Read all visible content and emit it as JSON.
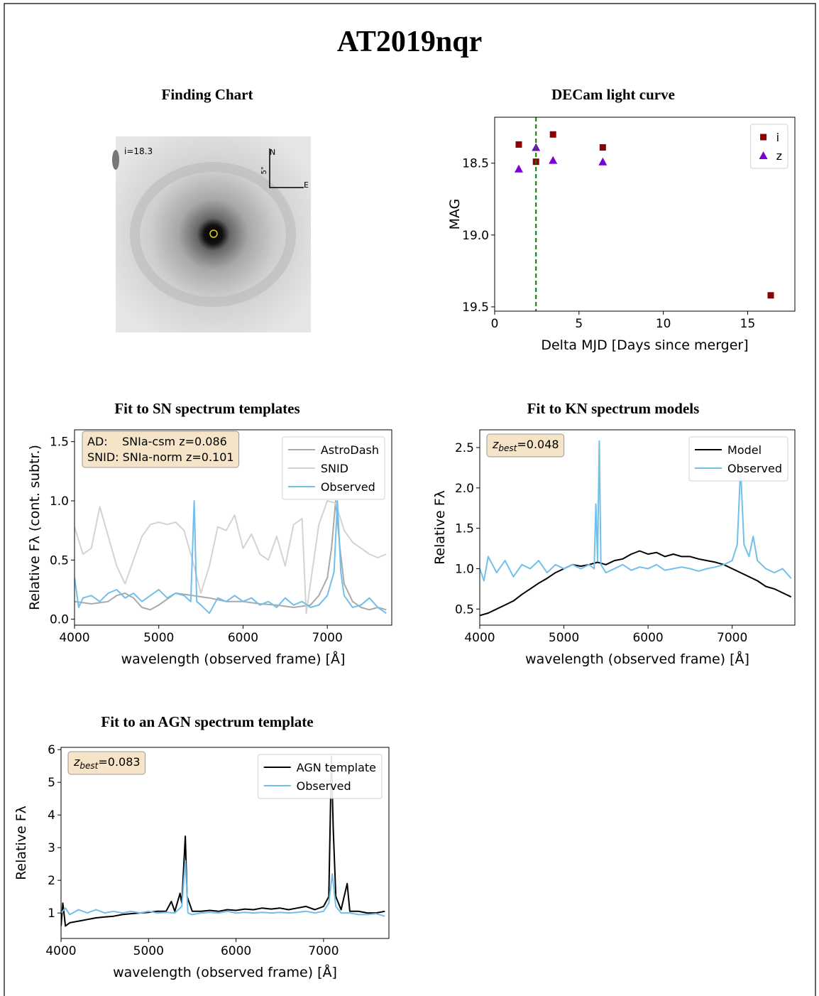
{
  "title": "AT2019nqr",
  "chart_data": [
    {
      "type": "image",
      "title": "Finding Chart",
      "annotations": {
        "magnitude": "i=18.3",
        "north": "N",
        "east": "E",
        "scale": "5\""
      }
    },
    {
      "type": "scatter",
      "title": "DECam light curve",
      "xlabel": "Delta MJD [Days since merger]",
      "ylabel": "MAG",
      "xlim": [
        0,
        17.8
      ],
      "ylim": [
        18.18,
        19.53
      ],
      "invert_y": true,
      "xticks": [
        0,
        5,
        10,
        15
      ],
      "yticks": [
        18.5,
        {
          "value": 19,
          "label": "19.0"
        },
        19.5
      ],
      "vline": 2.45,
      "vline_color": "#008000",
      "legend": "upper right",
      "series": [
        {
          "name": "i",
          "color": "#8b0000",
          "marker": "s",
          "x": [
            1.43,
            2.45,
            3.46,
            6.41,
            16.37
          ],
          "values": [
            18.37,
            18.49,
            18.3,
            18.39,
            19.42
          ]
        },
        {
          "name": "z",
          "color": "#7a00d6",
          "marker": "^",
          "x": [
            1.43,
            2.45,
            3.46,
            6.41
          ],
          "values": [
            18.54,
            18.39,
            18.48,
            18.49
          ]
        }
      ]
    },
    {
      "type": "line",
      "title": "Fit to SN spectrum templates",
      "xlabel": "wavelength (observed frame) [Å]",
      "ylabel": "Relative Fλ (cont. subtr.)",
      "xlim": [
        4000,
        7765
      ],
      "ylim": [
        -0.05,
        1.6
      ],
      "xticks": [
        4000,
        5000,
        6000,
        7000
      ],
      "yticks": [
        {
          "value": 0,
          "label": "0.0"
        },
        0.5,
        {
          "value": 1,
          "label": "1.0"
        },
        1.5
      ],
      "legend": "upper right",
      "annotation": [
        "AD:    SNIa-csm z=0.086",
        "SNID: SNIa-norm z=0.101"
      ],
      "series": [
        {
          "name": "AstroDash",
          "color": "#a9a9a9",
          "x": [
            4000,
            4200,
            4400,
            4500,
            4600,
            4700,
            4800,
            4900,
            5000,
            5200,
            5400,
            5600,
            5800,
            6000,
            6200,
            6400,
            6600,
            6800,
            6900,
            7000,
            7050,
            7100,
            7150,
            7200,
            7300,
            7400,
            7500,
            7600,
            7700
          ],
          "values": [
            0.15,
            0.13,
            0.15,
            0.2,
            0.22,
            0.18,
            0.1,
            0.08,
            0.12,
            0.22,
            0.2,
            0.18,
            0.15,
            0.15,
            0.13,
            0.12,
            0.1,
            0.12,
            0.2,
            0.35,
            0.6,
            1.0,
            0.6,
            0.3,
            0.15,
            0.1,
            0.08,
            0.1,
            0.08
          ]
        },
        {
          "name": "SNID",
          "color": "#d3d3d3",
          "x": [
            4000,
            4100,
            4200,
            4300,
            4400,
            4500,
            4600,
            4700,
            4800,
            4900,
            5000,
            5100,
            5200,
            5300,
            5400,
            5500,
            5600,
            5700,
            5800,
            5900,
            6000,
            6100,
            6200,
            6300,
            6400,
            6500,
            6600,
            6700,
            6750,
            6800,
            6900,
            7000,
            7100,
            7200,
            7300,
            7400,
            7500,
            7600,
            7700
          ],
          "values": [
            0.78,
            0.55,
            0.6,
            0.95,
            0.7,
            0.45,
            0.3,
            0.5,
            0.7,
            0.8,
            0.82,
            0.8,
            0.82,
            0.75,
            0.5,
            0.22,
            0.45,
            0.78,
            0.75,
            0.88,
            0.6,
            0.72,
            0.55,
            0.5,
            0.7,
            0.45,
            0.8,
            0.85,
            0.05,
            0.3,
            0.8,
            1.0,
            0.98,
            0.75,
            0.65,
            0.6,
            0.55,
            0.52,
            0.55
          ]
        },
        {
          "name": "Observed",
          "color": "#71bfea",
          "x": [
            4000,
            4050,
            4100,
            4200,
            4300,
            4400,
            4500,
            4600,
            4700,
            4800,
            4900,
            5000,
            5100,
            5200,
            5300,
            5380,
            5420,
            5450,
            5500,
            5600,
            5700,
            5800,
            5900,
            6000,
            6100,
            6200,
            6300,
            6400,
            6500,
            6600,
            6700,
            6800,
            6900,
            7000,
            7080,
            7120,
            7160,
            7200,
            7300,
            7400,
            7500,
            7600,
            7700
          ],
          "values": [
            0.35,
            0.1,
            0.18,
            0.2,
            0.15,
            0.22,
            0.25,
            0.18,
            0.22,
            0.15,
            0.2,
            0.25,
            0.18,
            0.22,
            0.2,
            0.15,
            1.0,
            0.15,
            0.12,
            0.05,
            0.18,
            0.15,
            0.2,
            0.15,
            0.18,
            0.12,
            0.15,
            0.1,
            0.18,
            0.12,
            0.15,
            0.1,
            0.12,
            0.2,
            0.4,
            1.0,
            0.4,
            0.2,
            0.1,
            0.12,
            0.18,
            0.1,
            0.05
          ]
        }
      ]
    },
    {
      "type": "line",
      "title": "Fit to KN spectrum models",
      "xlabel": "wavelength (observed frame) [Å]",
      "ylabel": "Relative Fλ",
      "xlim": [
        4000,
        7745
      ],
      "ylim": [
        0.3,
        2.72
      ],
      "xticks": [
        4000,
        5000,
        6000,
        7000
      ],
      "yticks": [
        0.5,
        {
          "value": 1,
          "label": "1.0"
        },
        1.5,
        {
          "value": 2,
          "label": "2.0"
        },
        2.5
      ],
      "legend": "upper right",
      "annotation": {
        "var": "z",
        "sub": "best",
        "text": "=0.048"
      },
      "series": [
        {
          "name": "Model",
          "color": "#000000",
          "x": [
            4000,
            4100,
            4200,
            4300,
            4400,
            4500,
            4600,
            4700,
            4800,
            4900,
            5000,
            5100,
            5200,
            5300,
            5400,
            5500,
            5600,
            5700,
            5800,
            5900,
            6000,
            6100,
            6200,
            6300,
            6400,
            6500,
            6600,
            6700,
            6800,
            6900,
            7000,
            7100,
            7200,
            7300,
            7400,
            7500,
            7600,
            7700
          ],
          "values": [
            0.42,
            0.45,
            0.5,
            0.55,
            0.6,
            0.68,
            0.75,
            0.82,
            0.88,
            0.95,
            1.0,
            1.05,
            1.03,
            1.05,
            1.08,
            1.05,
            1.1,
            1.12,
            1.18,
            1.22,
            1.18,
            1.2,
            1.15,
            1.18,
            1.15,
            1.15,
            1.12,
            1.1,
            1.08,
            1.05,
            1.0,
            0.95,
            0.9,
            0.85,
            0.78,
            0.75,
            0.7,
            0.65
          ]
        },
        {
          "name": "Observed",
          "color": "#71bfea",
          "x": [
            4000,
            4050,
            4100,
            4200,
            4300,
            4400,
            4500,
            4600,
            4700,
            4800,
            4900,
            5000,
            5100,
            5200,
            5300,
            5360,
            5380,
            5400,
            5420,
            5440,
            5500,
            5600,
            5700,
            5800,
            5900,
            6000,
            6100,
            6200,
            6300,
            6400,
            6500,
            6600,
            6700,
            6800,
            6900,
            7000,
            7060,
            7100,
            7140,
            7200,
            7250,
            7300,
            7400,
            7500,
            7600,
            7700
          ],
          "values": [
            1.0,
            0.85,
            1.15,
            0.95,
            1.1,
            0.9,
            1.05,
            1.0,
            1.1,
            0.95,
            1.05,
            1.0,
            1.05,
            1.0,
            1.05,
            1.0,
            1.8,
            1.1,
            2.58,
            1.05,
            0.95,
            1.0,
            1.05,
            0.98,
            1.02,
            1.0,
            1.05,
            0.98,
            1.0,
            1.02,
            1.0,
            0.97,
            1.0,
            1.02,
            1.05,
            1.1,
            1.3,
            2.25,
            1.3,
            1.15,
            1.4,
            1.1,
            1.0,
            0.95,
            1.0,
            0.88
          ]
        }
      ]
    },
    {
      "type": "line",
      "title": "Fit to an AGN spectrum template",
      "xlabel": "wavelength (observed frame) [Å]",
      "ylabel": "Relative Fλ",
      "xlim": [
        4000,
        7747
      ],
      "ylim": [
        0.22,
        6.07
      ],
      "xticks": [
        4000,
        5000,
        6000,
        7000
      ],
      "yticks": [
        1,
        2,
        3,
        4,
        5,
        6
      ],
      "legend": "upper right",
      "annotation": {
        "var": "z",
        "sub": "best",
        "text": "=0.083"
      },
      "series": [
        {
          "name": "AGN template",
          "color": "#000000",
          "x": [
            4000,
            4020,
            4050,
            4100,
            4200,
            4300,
            4400,
            4500,
            4600,
            4700,
            4800,
            4900,
            5000,
            5100,
            5200,
            5260,
            5300,
            5360,
            5380,
            5420,
            5440,
            5480,
            5500,
            5600,
            5700,
            5800,
            5900,
            6000,
            6100,
            6200,
            6300,
            6400,
            6500,
            6600,
            6700,
            6800,
            6900,
            7000,
            7060,
            7090,
            7110,
            7140,
            7200,
            7270,
            7300,
            7400,
            7500,
            7600,
            7700
          ],
          "values": [
            0.6,
            1.3,
            0.6,
            0.7,
            0.75,
            0.8,
            0.85,
            0.88,
            0.9,
            0.95,
            0.98,
            1.0,
            1.02,
            1.05,
            1.05,
            1.35,
            1.05,
            1.6,
            1.3,
            3.35,
            1.5,
            1.2,
            1.05,
            1.05,
            1.08,
            1.05,
            1.1,
            1.08,
            1.12,
            1.1,
            1.15,
            1.12,
            1.15,
            1.1,
            1.15,
            1.2,
            1.1,
            1.2,
            1.5,
            5.8,
            3.6,
            1.5,
            1.1,
            1.9,
            1.05,
            1.05,
            1.0,
            1.0,
            1.05
          ]
        },
        {
          "name": "Observed",
          "color": "#71bfea",
          "x": [
            4000,
            4050,
            4100,
            4200,
            4300,
            4400,
            4500,
            4600,
            4700,
            4800,
            4900,
            5000,
            5100,
            5200,
            5300,
            5380,
            5420,
            5450,
            5500,
            5600,
            5700,
            5800,
            5900,
            6000,
            6100,
            6200,
            6300,
            6400,
            6500,
            6600,
            6700,
            6800,
            6900,
            7000,
            7060,
            7100,
            7140,
            7200,
            7300,
            7400,
            7500,
            7600,
            7700
          ],
          "values": [
            1.0,
            1.15,
            0.95,
            1.1,
            1.0,
            1.1,
            1.0,
            1.05,
            1.0,
            1.05,
            1.0,
            1.05,
            1.0,
            1.02,
            1.0,
            1.2,
            2.6,
            1.0,
            0.95,
            1.0,
            1.02,
            1.0,
            1.05,
            1.0,
            1.02,
            1.0,
            1.02,
            1.0,
            1.02,
            1.0,
            1.02,
            1.05,
            1.0,
            1.05,
            1.3,
            2.2,
            1.2,
            1.0,
            1.0,
            0.95,
            0.95,
            0.98,
            0.9
          ]
        }
      ]
    }
  ]
}
